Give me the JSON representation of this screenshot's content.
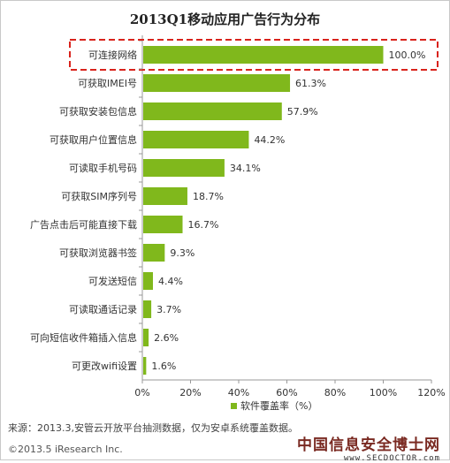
{
  "colors": {
    "bar": "#80b81c",
    "highlight_border": "#d9231c",
    "axis": "#999999"
  },
  "chart_data": {
    "type": "bar",
    "orientation": "horizontal",
    "title": "2013Q1移动应用广告行为分布",
    "categories": [
      "可连接网络",
      "可获取IMEI号",
      "可获取安装包信息",
      "可获取用户位置信息",
      "可读取手机号码",
      "可获取SIM序列号",
      "广告点击后可能直接下载",
      "可获取浏览器书签",
      "可发送短信",
      "可读取通话记录",
      "可向短信收件箱插入信息",
      "可更改wifi设置"
    ],
    "values": [
      100.0,
      61.3,
      57.9,
      44.2,
      34.1,
      18.7,
      16.7,
      9.3,
      4.4,
      3.7,
      2.6,
      1.6
    ],
    "value_labels": [
      "100.0%",
      "61.3%",
      "57.9%",
      "44.2%",
      "34.1%",
      "18.7%",
      "16.7%",
      "9.3%",
      "4.4%",
      "3.7%",
      "2.6%",
      "1.6%"
    ],
    "xlim": [
      0,
      120
    ],
    "xticks": [
      0,
      20,
      40,
      60,
      80,
      100,
      120
    ],
    "xtick_labels": [
      "0%",
      "20%",
      "40%",
      "60%",
      "80%",
      "100%",
      "120%"
    ],
    "series": [
      {
        "name": "软件覆盖率（%）"
      }
    ],
    "legend_position": "bottom",
    "highlighted_category": "可连接网络"
  },
  "source_text": "来源：2013.3,安管云开放平台抽测数据，仅为安卓系统覆盖数据。",
  "copyright_text": "©2013.5 iResearch Inc.",
  "watermark": {
    "cn": "中国信息安全博士网",
    "en": "www.SECDOCTOR.com"
  }
}
